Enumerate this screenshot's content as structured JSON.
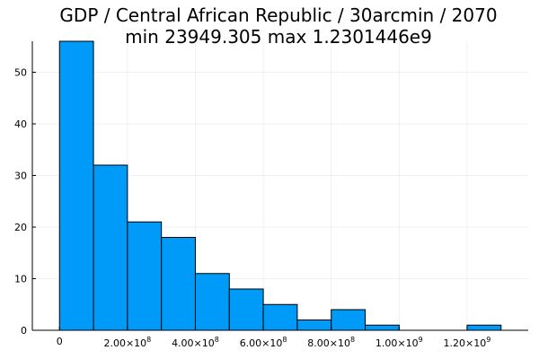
{
  "chart_data": {
    "type": "bar",
    "title_line1": "GDP / Central African Republic / 30arcmin / 2070",
    "title_line2": "min 23949.305  max 1.2301446e9",
    "xlabel": "",
    "ylabel": "",
    "bin_edges": [
      0,
      100000000,
      200000000,
      300000000,
      400000000,
      500000000,
      600000000,
      700000000,
      800000000,
      900000000,
      1000000000,
      1100000000,
      1200000000,
      1300000000
    ],
    "counts": [
      56,
      32,
      21,
      18,
      11,
      8,
      5,
      2,
      4,
      1,
      0,
      0,
      1
    ],
    "xlim": [
      -80000000,
      1380000000
    ],
    "ylim": [
      0,
      56
    ],
    "x_ticks": [
      {
        "value": 0,
        "mantissa": "0",
        "exponent": ""
      },
      {
        "value": 200000000,
        "mantissa": "2.00×10",
        "exponent": "8"
      },
      {
        "value": 400000000,
        "mantissa": "4.00×10",
        "exponent": "8"
      },
      {
        "value": 600000000,
        "mantissa": "6.00×10",
        "exponent": "8"
      },
      {
        "value": 800000000,
        "mantissa": "8.00×10",
        "exponent": "8"
      },
      {
        "value": 1000000000,
        "mantissa": "1.00×10",
        "exponent": "9"
      },
      {
        "value": 1200000000,
        "mantissa": "1.20×10",
        "exponent": "9"
      }
    ],
    "y_ticks": [
      0,
      10,
      20,
      30,
      40,
      50
    ],
    "grid": true,
    "legend": "none",
    "bar_color": "#009af9"
  }
}
